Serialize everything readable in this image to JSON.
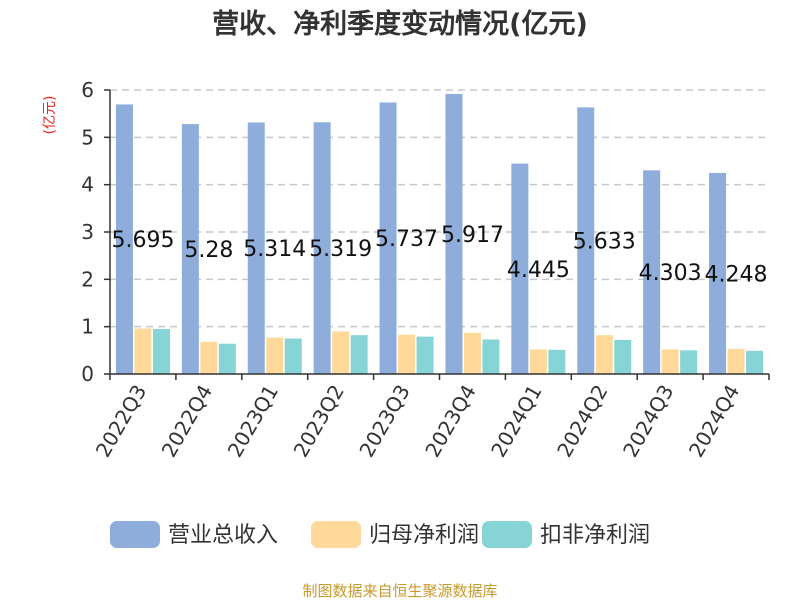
{
  "chart_data": {
    "type": "bar",
    "title": "营收、净利季度变动情况(亿元)",
    "ylabel": "(亿元)",
    "xlabel": "",
    "ylim": [
      0,
      6
    ],
    "yticks": [
      0,
      1,
      2,
      3,
      4,
      5,
      6
    ],
    "grid": true,
    "legend_position": "bottom",
    "categories": [
      "2022Q3",
      "2022Q4",
      "2023Q1",
      "2023Q2",
      "2023Q3",
      "2023Q4",
      "2024Q1",
      "2024Q2",
      "2024Q3",
      "2024Q4"
    ],
    "series": [
      {
        "name": "营业总收入",
        "color": "#8eaddb",
        "values": [
          5.695,
          5.28,
          5.314,
          5.319,
          5.737,
          5.917,
          4.445,
          5.633,
          4.303,
          4.248
        ],
        "data_labels": [
          "5.695",
          "5.28",
          "5.314",
          "5.319",
          "5.737",
          "5.917",
          "4.445",
          "5.633",
          "4.303",
          "4.248"
        ]
      },
      {
        "name": "归母净利润",
        "color": "#ffd99a",
        "values": [
          0.96,
          0.68,
          0.77,
          0.9,
          0.83,
          0.87,
          0.52,
          0.82,
          0.52,
          0.53
        ]
      },
      {
        "name": "扣非净利润",
        "color": "#86d4d6",
        "values": [
          0.95,
          0.64,
          0.75,
          0.82,
          0.79,
          0.73,
          0.51,
          0.72,
          0.5,
          0.49
        ]
      }
    ],
    "source": "制图数据来自恒生聚源数据库"
  }
}
